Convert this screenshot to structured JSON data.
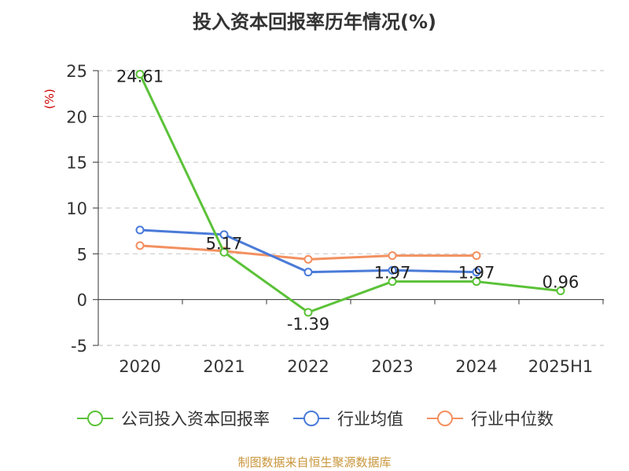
{
  "title": "投入资本回报率历年情况(%)",
  "source": "制图数据来自恒生聚源数据库",
  "colors": {
    "company": "#5bc238",
    "industry_avg": "#4a7bd8",
    "industry_median": "#f39060"
  },
  "chart_data": {
    "type": "line",
    "title": "投入资本回报率历年情况(%)",
    "ylabel": "(%)",
    "ylim": [
      -5,
      25
    ],
    "yticks": [
      -5,
      0,
      5,
      10,
      15,
      20,
      25
    ],
    "categories": [
      "2020",
      "2021",
      "2022",
      "2023",
      "2024",
      "2025H1"
    ],
    "grid": true,
    "legend_position": "bottom",
    "series": [
      {
        "name": "公司投入资本回报率",
        "values": [
          24.61,
          5.17,
          -1.39,
          1.97,
          1.97,
          0.96
        ],
        "labels": [
          "24.61",
          "5.17",
          "-1.39",
          "1.97",
          "1.97",
          "0.96"
        ]
      },
      {
        "name": "行业均值",
        "values": [
          7.6,
          7.1,
          3.0,
          3.2,
          3.0,
          null
        ]
      },
      {
        "name": "行业中位数",
        "values": [
          5.9,
          5.3,
          4.4,
          4.8,
          4.8,
          null
        ]
      }
    ]
  }
}
